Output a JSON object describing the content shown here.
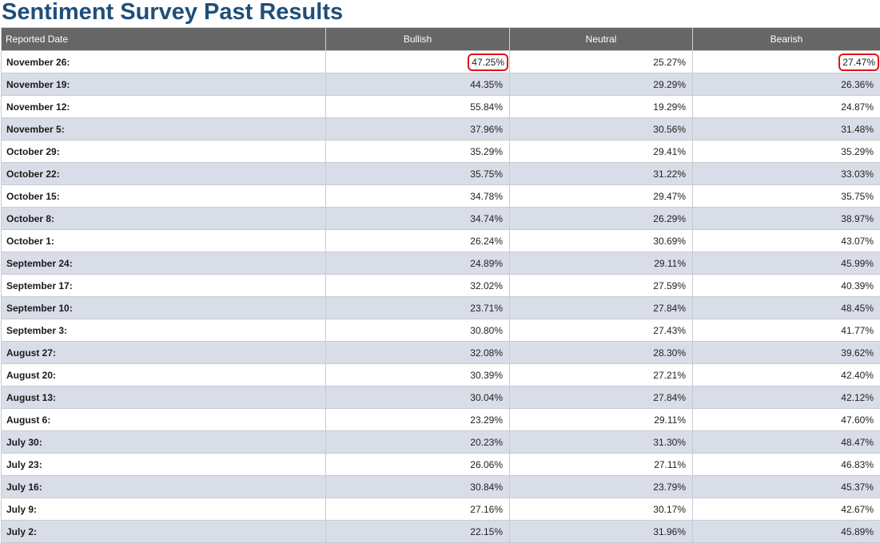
{
  "page_title": "Sentiment Survey Past Results",
  "table": {
    "headers": {
      "date": "Reported Date",
      "bullish": "Bullish",
      "neutral": "Neutral",
      "bearish": "Bearish"
    },
    "rows": [
      {
        "date": "November 26:",
        "bullish": "47.25%",
        "neutral": "25.27%",
        "bearish": "27.47%",
        "highlighted": [
          "bullish",
          "bearish"
        ]
      },
      {
        "date": "November 19:",
        "bullish": "44.35%",
        "neutral": "29.29%",
        "bearish": "26.36%"
      },
      {
        "date": "November 12:",
        "bullish": "55.84%",
        "neutral": "19.29%",
        "bearish": "24.87%"
      },
      {
        "date": "November 5:",
        "bullish": "37.96%",
        "neutral": "30.56%",
        "bearish": "31.48%"
      },
      {
        "date": "October 29:",
        "bullish": "35.29%",
        "neutral": "29.41%",
        "bearish": "35.29%"
      },
      {
        "date": "October 22:",
        "bullish": "35.75%",
        "neutral": "31.22%",
        "bearish": "33.03%"
      },
      {
        "date": "October 15:",
        "bullish": "34.78%",
        "neutral": "29.47%",
        "bearish": "35.75%"
      },
      {
        "date": "October 8:",
        "bullish": "34.74%",
        "neutral": "26.29%",
        "bearish": "38.97%"
      },
      {
        "date": "October 1:",
        "bullish": "26.24%",
        "neutral": "30.69%",
        "bearish": "43.07%"
      },
      {
        "date": "September 24:",
        "bullish": "24.89%",
        "neutral": "29.11%",
        "bearish": "45.99%"
      },
      {
        "date": "September 17:",
        "bullish": "32.02%",
        "neutral": "27.59%",
        "bearish": "40.39%"
      },
      {
        "date": "September 10:",
        "bullish": "23.71%",
        "neutral": "27.84%",
        "bearish": "48.45%"
      },
      {
        "date": "September 3:",
        "bullish": "30.80%",
        "neutral": "27.43%",
        "bearish": "41.77%"
      },
      {
        "date": "August 27:",
        "bullish": "32.08%",
        "neutral": "28.30%",
        "bearish": "39.62%"
      },
      {
        "date": "August 20:",
        "bullish": "30.39%",
        "neutral": "27.21%",
        "bearish": "42.40%"
      },
      {
        "date": "August 13:",
        "bullish": "30.04%",
        "neutral": "27.84%",
        "bearish": "42.12%"
      },
      {
        "date": "August 6:",
        "bullish": "23.29%",
        "neutral": "29.11%",
        "bearish": "47.60%"
      },
      {
        "date": "July 30:",
        "bullish": "20.23%",
        "neutral": "31.30%",
        "bearish": "48.47%"
      },
      {
        "date": "July 23:",
        "bullish": "26.06%",
        "neutral": "27.11%",
        "bearish": "46.83%"
      },
      {
        "date": "July 16:",
        "bullish": "30.84%",
        "neutral": "23.79%",
        "bearish": "45.37%"
      },
      {
        "date": "July 9:",
        "bullish": "27.16%",
        "neutral": "30.17%",
        "bearish": "42.67%"
      },
      {
        "date": "July 2:",
        "bullish": "22.15%",
        "neutral": "31.96%",
        "bearish": "45.89%"
      }
    ]
  },
  "colors": {
    "title": "#1f4e79",
    "header_bg": "#666666",
    "alt_row_bg": "#d8dde8",
    "highlight_ring": "#e0121b"
  }
}
